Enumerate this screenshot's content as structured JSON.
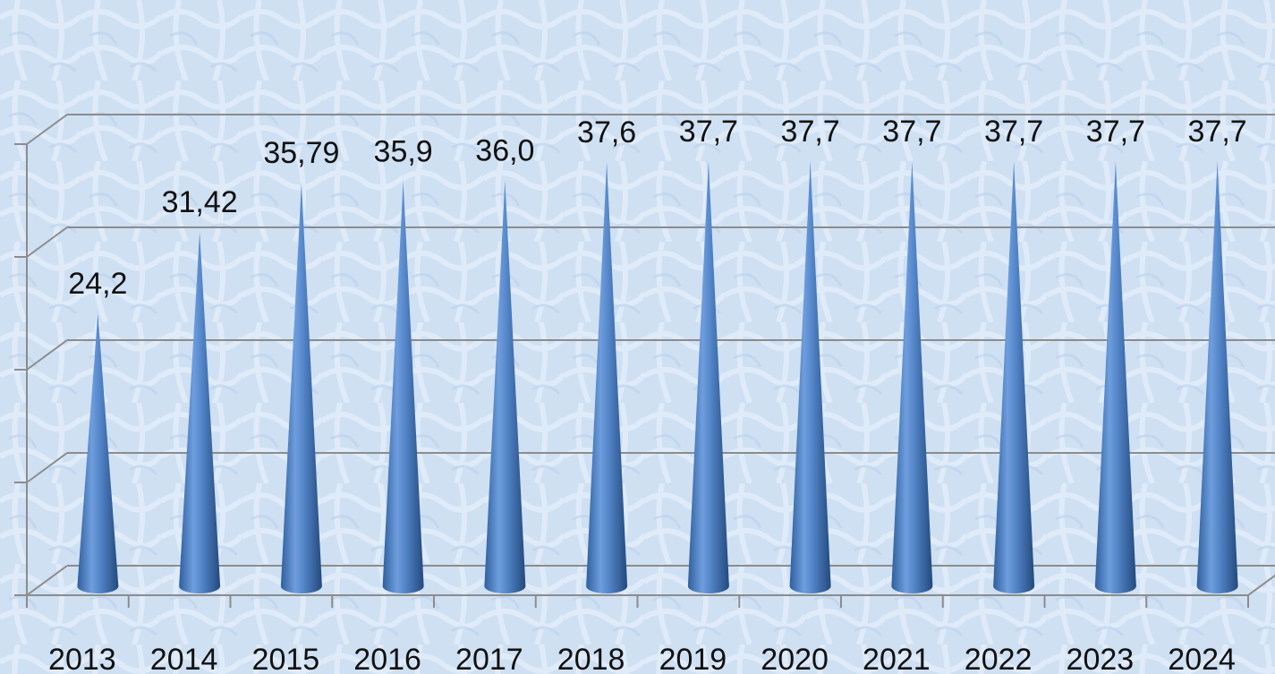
{
  "chart_data": {
    "type": "cone",
    "categories": [
      "2013",
      "2014",
      "2015",
      "2016",
      "2017",
      "2018",
      "2019",
      "2020",
      "2021",
      "2022",
      "2023",
      "2024"
    ],
    "values": [
      24.2,
      31.42,
      35.79,
      35.9,
      36.0,
      37.6,
      37.7,
      37.7,
      37.7,
      37.7,
      37.7,
      37.7
    ],
    "value_labels": [
      "24,2",
      "31,42",
      "35,79",
      "35,9",
      "36,0",
      "37,6",
      "37,7",
      "37,7",
      "37,7",
      "37,7",
      "37,7",
      "37,7"
    ],
    "color": "#4f81bd",
    "ylim": [
      0,
      40
    ],
    "yticks": [
      0,
      10,
      20,
      30,
      40
    ],
    "grid": true
  }
}
